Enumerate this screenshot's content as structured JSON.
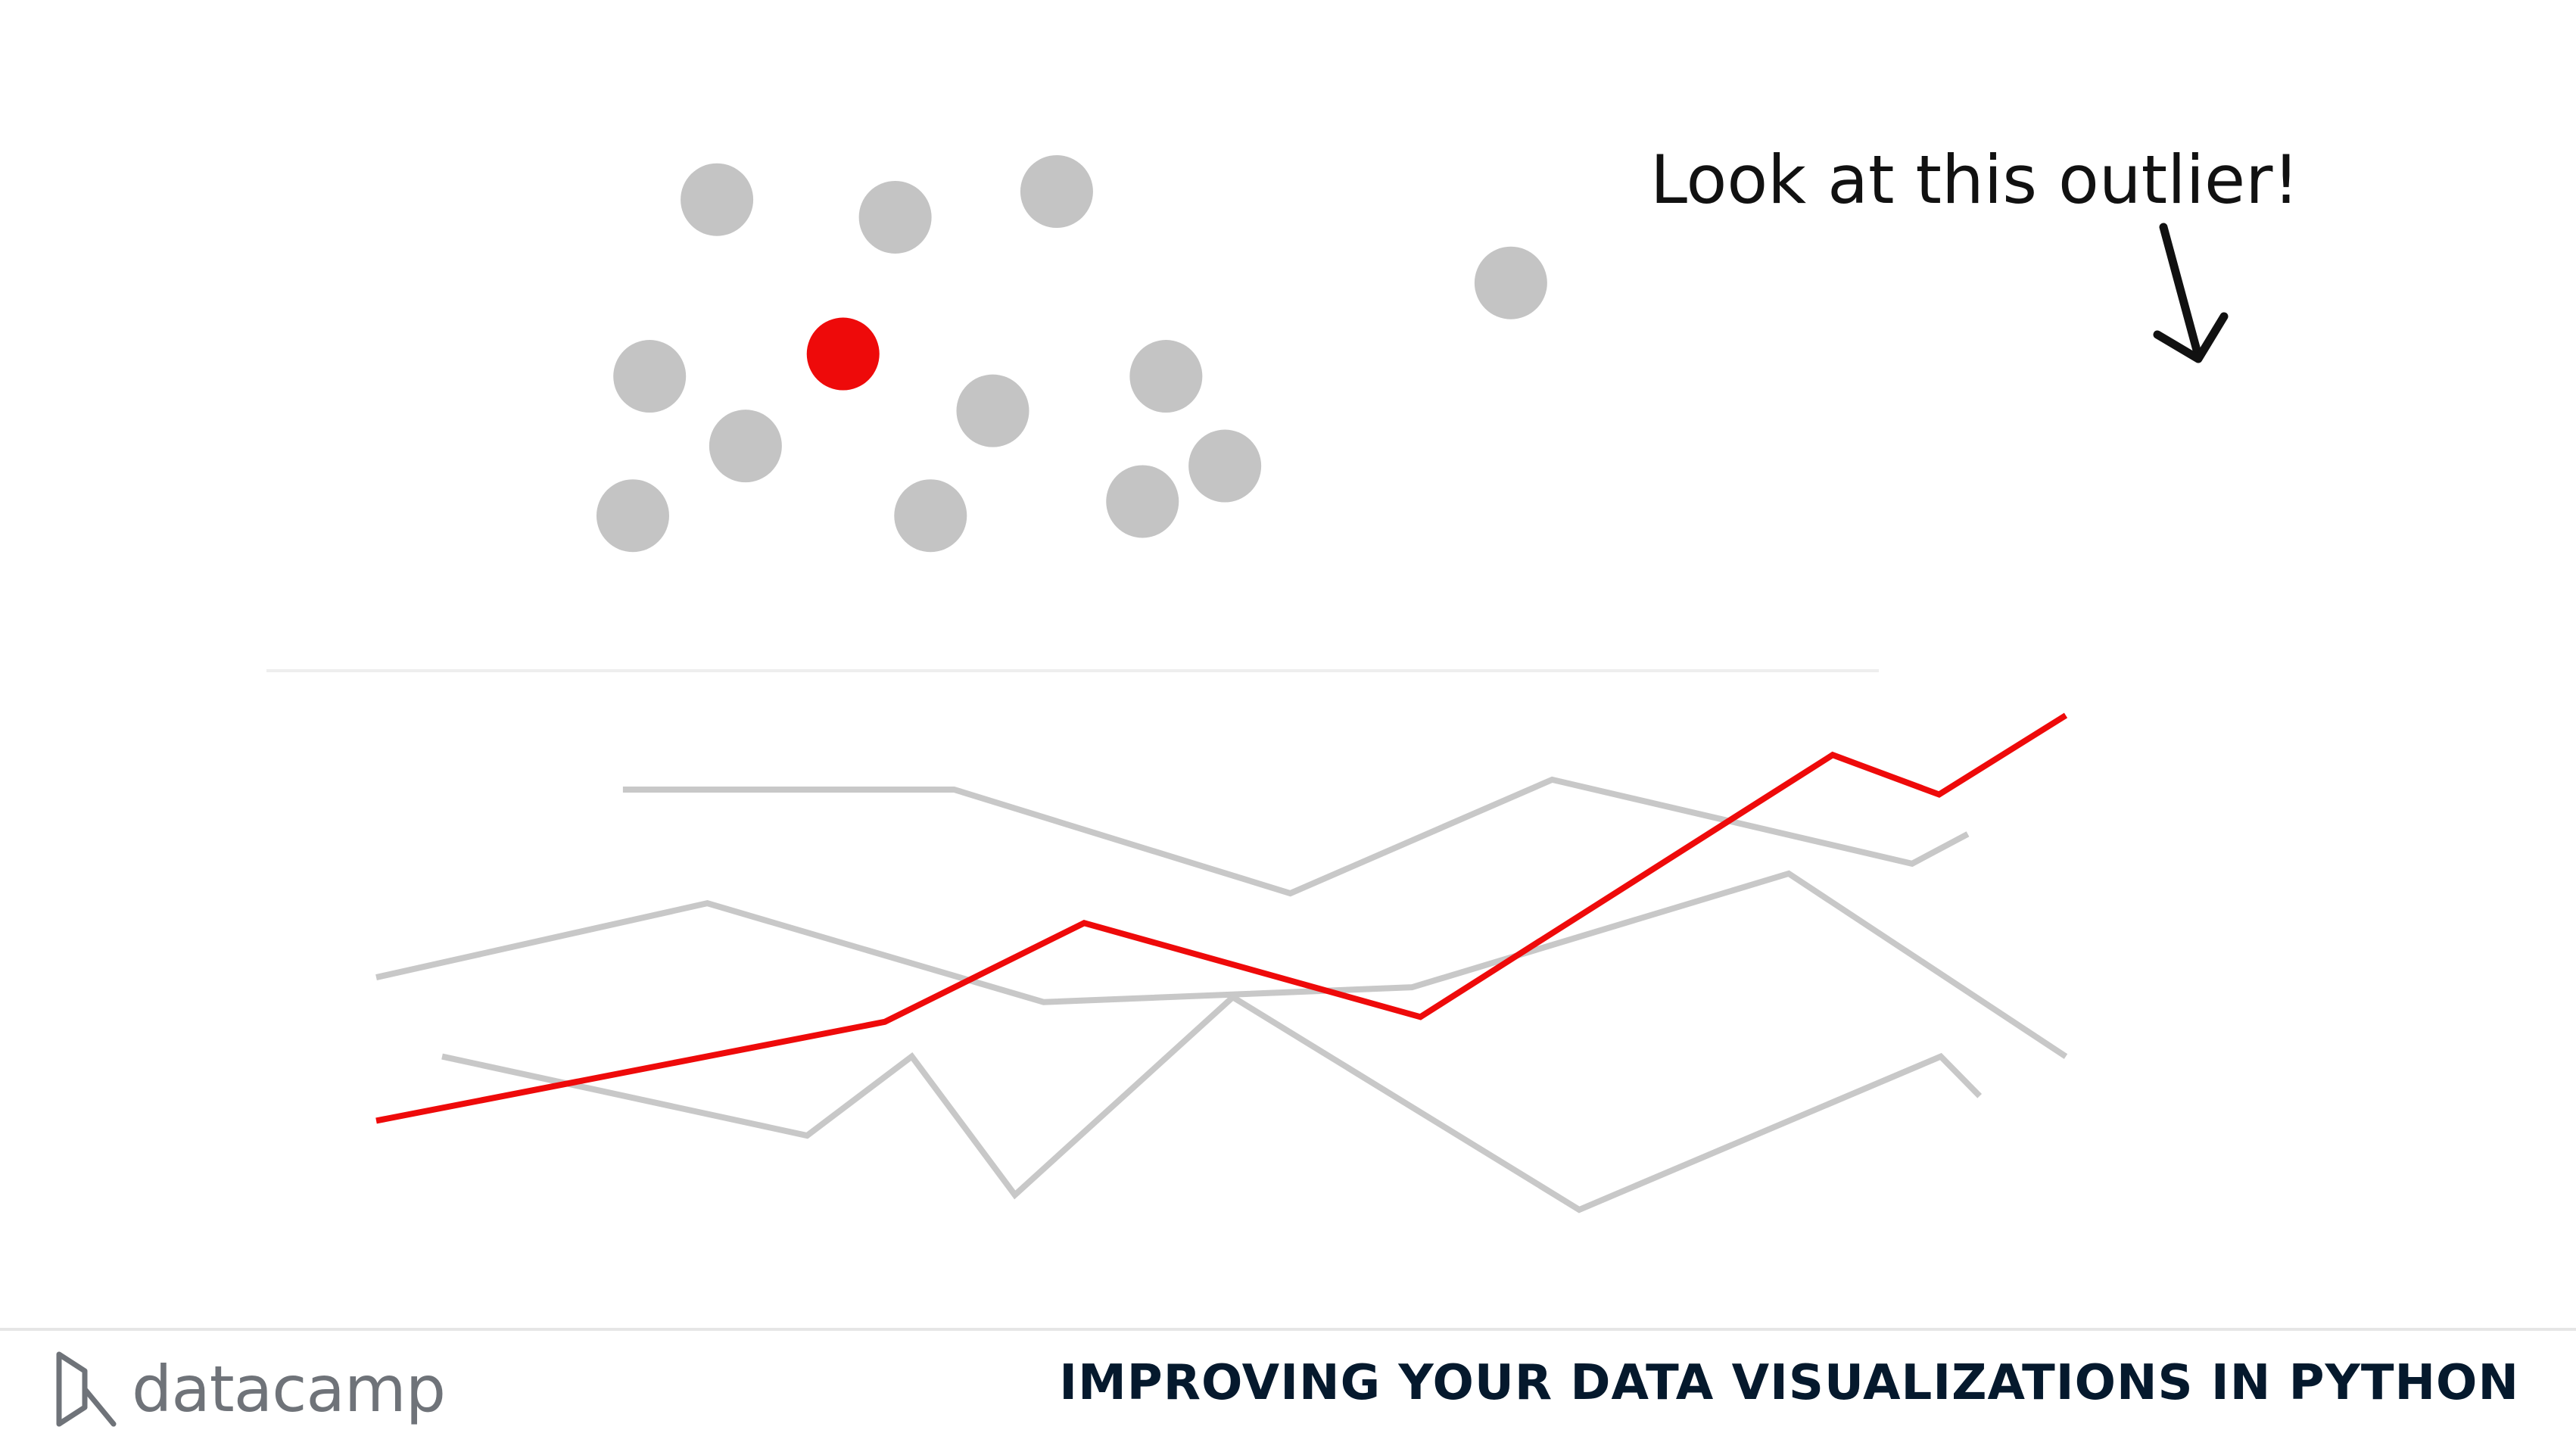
{
  "annotation": {
    "text": "Look at this outlier!"
  },
  "colors": {
    "highlight": "#ee0a0a",
    "muted_points": "#c4c4c4",
    "muted_lines": "#c8c8c8",
    "arrow": "#111111",
    "footer_title": "#05192d",
    "logo": "#6f7379"
  },
  "icons": {
    "arrow": "arrow-down-icon",
    "logo": "datacamp-logo-icon"
  },
  "footer": {
    "logo_text": "datacamp",
    "course_title": "IMPROVING YOUR DATA VISUALIZATIONS IN PYTHON"
  },
  "chart_data": [
    {
      "type": "scatter",
      "xlim": [
        0,
        100
      ],
      "ylim": [
        0,
        100
      ],
      "grid": false,
      "points": [
        {
          "x": 6.3,
          "y": 4.2,
          "highlight": false
        },
        {
          "x": 7.3,
          "y": 45.4,
          "highlight": false
        },
        {
          "x": 11.3,
          "y": 97.6,
          "highlight": false
        },
        {
          "x": 13.0,
          "y": 24.8,
          "highlight": false
        },
        {
          "x": 18.8,
          "y": 52.0,
          "highlight": true
        },
        {
          "x": 21.9,
          "y": 92.4,
          "highlight": false
        },
        {
          "x": 24.0,
          "y": 4.2,
          "highlight": false
        },
        {
          "x": 27.7,
          "y": 35.2,
          "highlight": false
        },
        {
          "x": 31.5,
          "y": 100.0,
          "highlight": false
        },
        {
          "x": 36.6,
          "y": 8.4,
          "highlight": false
        },
        {
          "x": 38.0,
          "y": 45.4,
          "highlight": false
        },
        {
          "x": 41.5,
          "y": 18.9,
          "highlight": false
        },
        {
          "x": 58.5,
          "y": 73.0,
          "highlight": false
        }
      ]
    },
    {
      "type": "line",
      "xlim": [
        0,
        100
      ],
      "ylim": [
        0,
        100
      ],
      "grid": false,
      "series": [
        {
          "highlight": false,
          "points": [
            [
              14.6,
              85
            ],
            [
              34.2,
              85
            ],
            [
              54.1,
              64
            ],
            [
              69.6,
              87
            ],
            [
              90.9,
              70
            ],
            [
              94.2,
              76
            ]
          ]
        },
        {
          "highlight": false,
          "points": [
            [
              0,
              47
            ],
            [
              19.6,
              62
            ],
            [
              39.5,
              42
            ],
            [
              61.3,
              45
            ],
            [
              83.6,
              68
            ],
            [
              100,
              31
            ]
          ]
        },
        {
          "highlight": false,
          "points": [
            [
              3.9,
              31
            ],
            [
              25.5,
              15
            ],
            [
              31.7,
              31
            ],
            [
              37.8,
              3
            ],
            [
              50.7,
              43
            ],
            [
              71.2,
              0
            ],
            [
              92.6,
              31
            ],
            [
              94.9,
              23
            ]
          ]
        },
        {
          "highlight": true,
          "points": [
            [
              0,
              18
            ],
            [
              30.1,
              38
            ],
            [
              41.9,
              58
            ],
            [
              61.8,
              39
            ],
            [
              86.2,
              92
            ],
            [
              92.5,
              84
            ],
            [
              100,
              100
            ]
          ]
        }
      ]
    }
  ]
}
